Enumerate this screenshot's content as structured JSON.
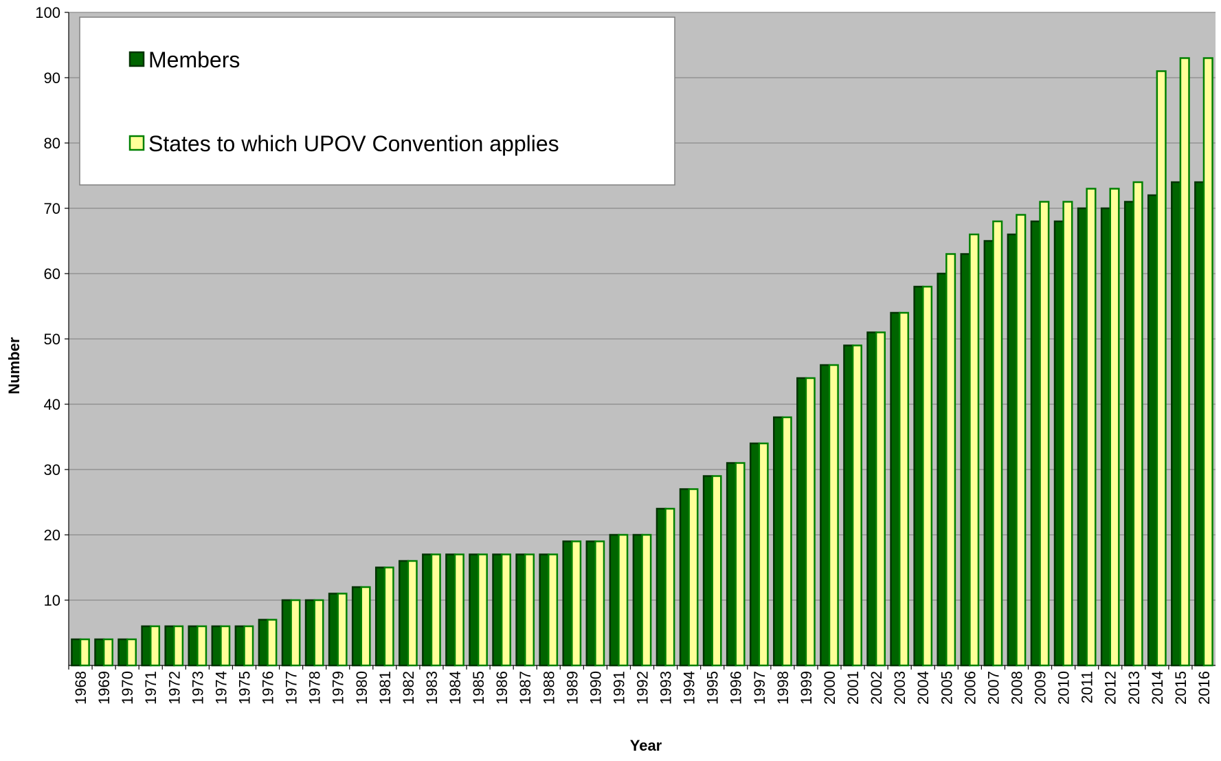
{
  "chart_data": {
    "type": "bar",
    "x_label": "Year",
    "y_label": "Number",
    "categories": [
      "1968",
      "1969",
      "1970",
      "1971",
      "1972",
      "1973",
      "1974",
      "1975",
      "1976",
      "1977",
      "1978",
      "1979",
      "1980",
      "1981",
      "1982",
      "1983",
      "1984",
      "1985",
      "1986",
      "1987",
      "1988",
      "1989",
      "1990",
      "1991",
      "1992",
      "1993",
      "1994",
      "1995",
      "1996",
      "1997",
      "1998",
      "1999",
      "2000",
      "2001",
      "2002",
      "2003",
      "2004",
      "2005",
      "2006",
      "2007",
      "2008",
      "2009",
      "2010",
      "2011",
      "2012",
      "2013",
      "2014",
      "2015",
      "2016"
    ],
    "series": [
      {
        "name": "Members",
        "color": "#006400",
        "values": [
          4,
          4,
          4,
          6,
          6,
          6,
          6,
          6,
          7,
          10,
          10,
          11,
          12,
          15,
          16,
          17,
          17,
          17,
          17,
          17,
          17,
          19,
          19,
          20,
          20,
          24,
          27,
          29,
          31,
          34,
          38,
          44,
          46,
          49,
          51,
          54,
          58,
          60,
          63,
          65,
          66,
          68,
          68,
          70,
          70,
          71,
          72,
          74,
          74
        ]
      },
      {
        "name": "States to which UPOV Convention applies",
        "color": "#ffff99",
        "values": [
          4,
          4,
          4,
          6,
          6,
          6,
          6,
          6,
          7,
          10,
          10,
          11,
          12,
          15,
          16,
          17,
          17,
          17,
          17,
          17,
          17,
          19,
          19,
          20,
          20,
          24,
          27,
          29,
          31,
          34,
          38,
          44,
          46,
          49,
          51,
          54,
          58,
          63,
          66,
          68,
          69,
          71,
          71,
          73,
          73,
          74,
          91,
          93,
          93
        ]
      }
    ],
    "ylim": [
      0,
      100
    ],
    "yticks": [
      10,
      20,
      30,
      40,
      50,
      60,
      70,
      80,
      90,
      100
    ],
    "grid": true,
    "legend_position": "upper left"
  }
}
